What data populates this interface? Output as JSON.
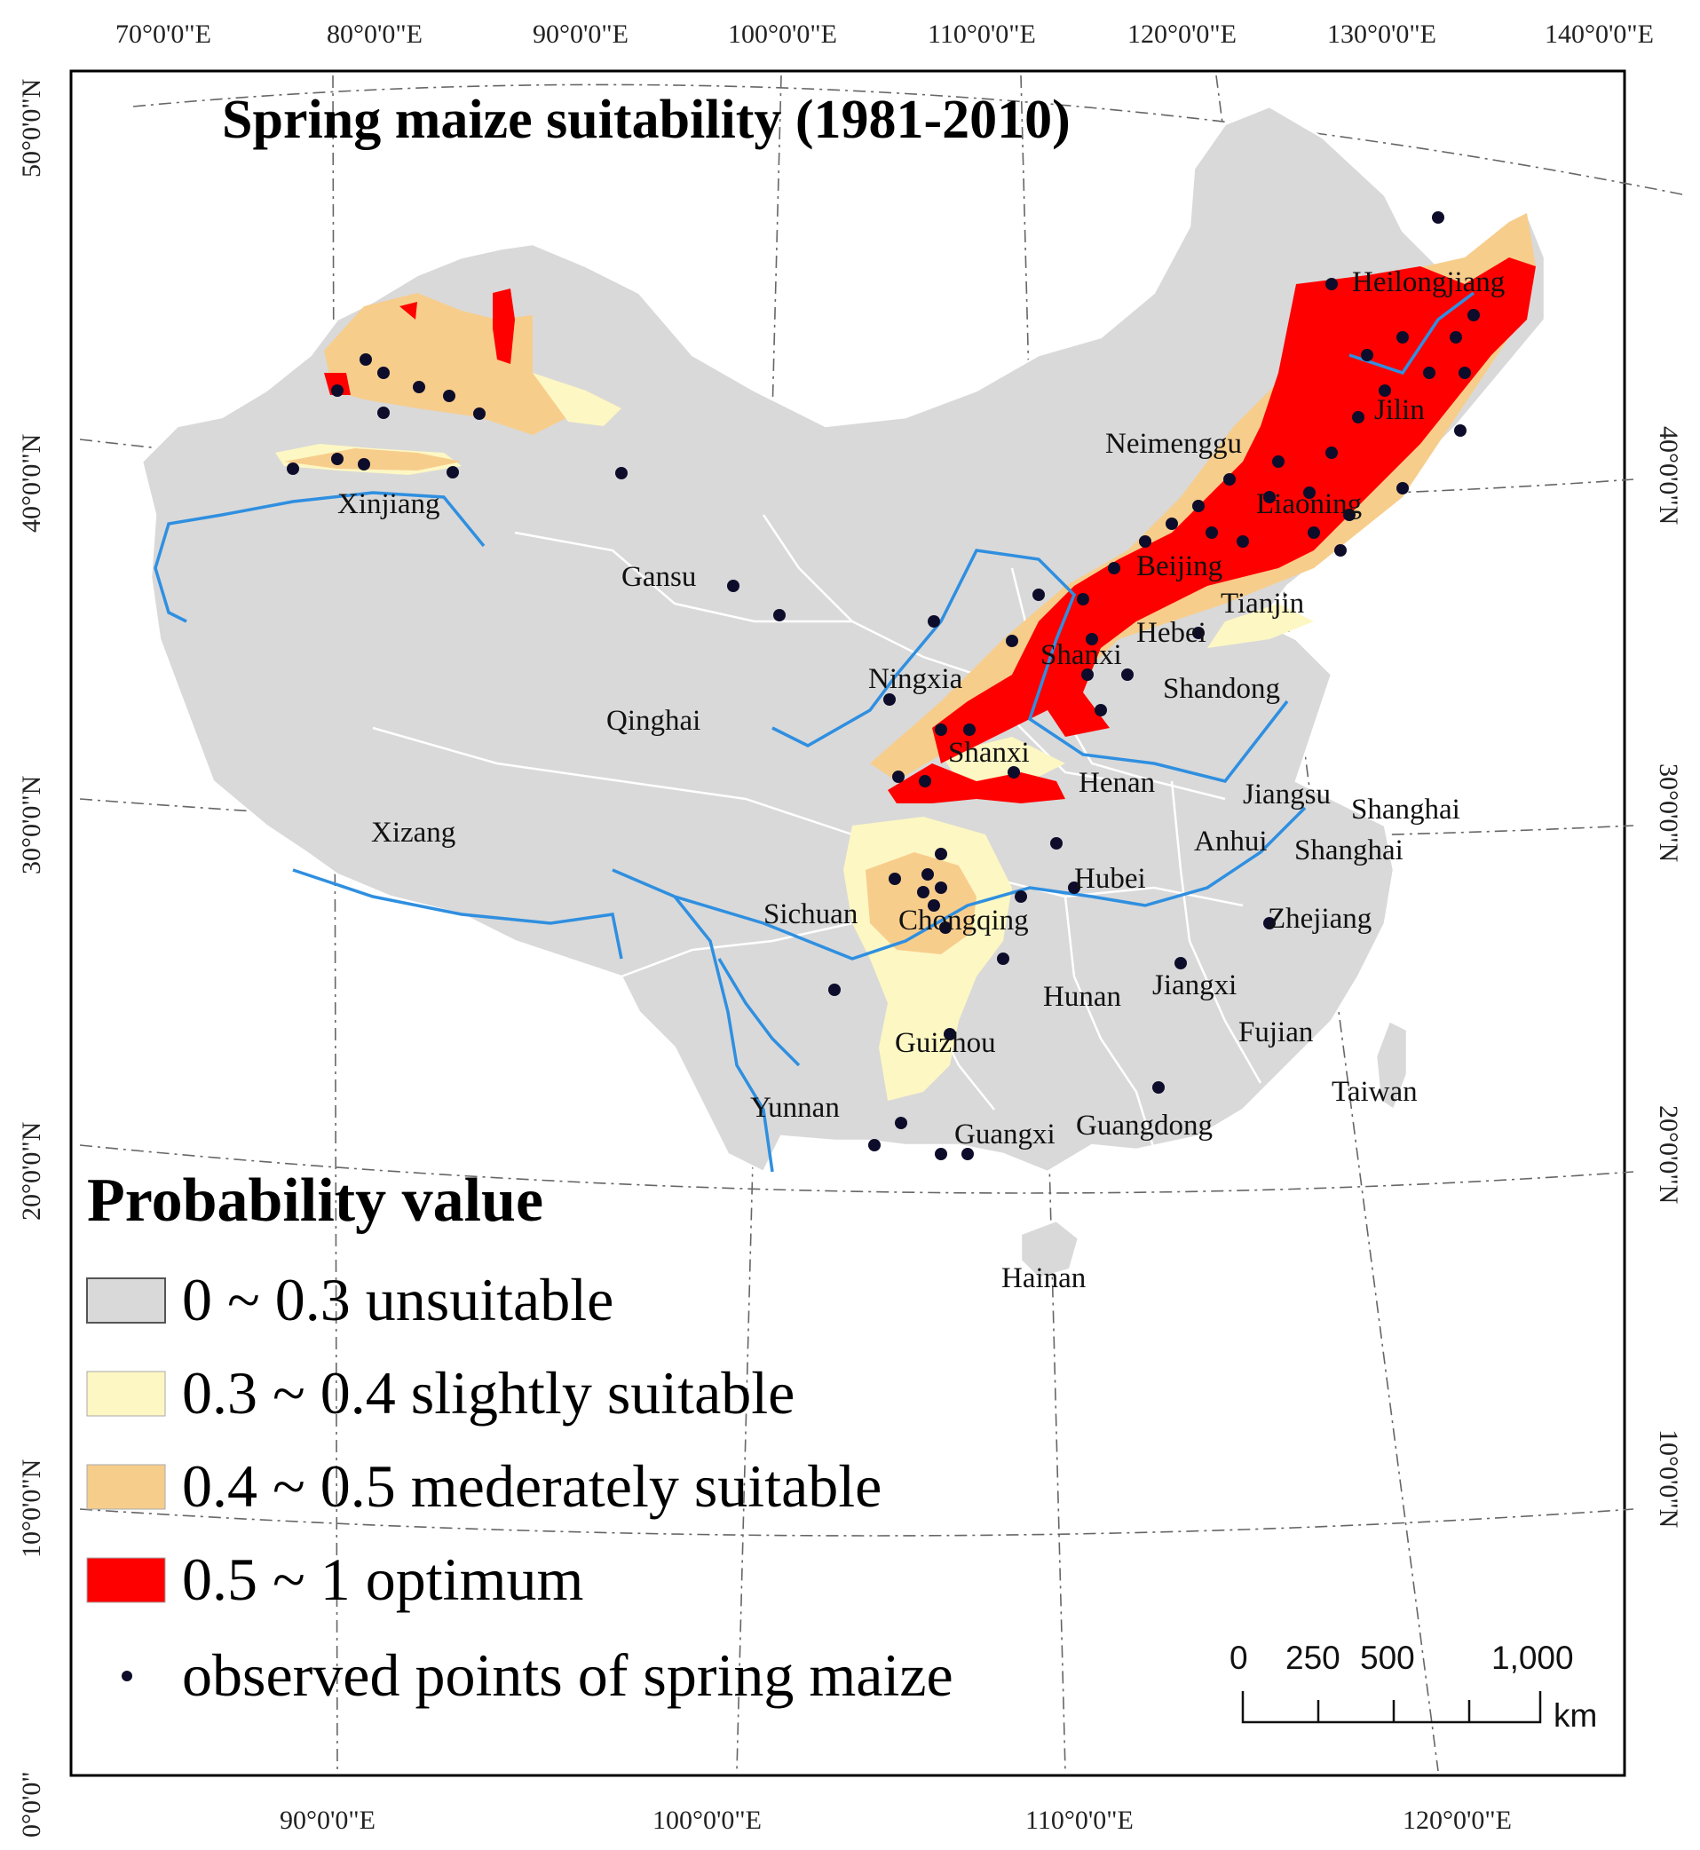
{
  "title": "Spring maize suitability (1981-2010)",
  "axes": {
    "top_ticks": [
      "70°0'0\"E",
      "80°0'0\"E",
      "90°0'0\"E",
      "100°0'0\"E",
      "110°0'0\"E",
      "120°0'0\"E",
      "130°0'0\"E",
      "140°0'0\"E"
    ],
    "bottom_ticks": [
      "90°0'0\"E",
      "100°0'0\"E",
      "110°0'0\"E",
      "120°0'0\"E"
    ],
    "left_ticks": [
      "50°0'0\"N",
      "40°0'0\"N",
      "30°0'0\"N",
      "20°0'0\"N",
      "10°0'0\"N",
      "0°0'0\""
    ],
    "right_ticks": [
      "40°0'0\"N",
      "30°0'0\"N",
      "20°0'0\"N",
      "10°0'0\"N"
    ]
  },
  "provinces": [
    "Heilongjiang",
    "Jilin",
    "Neimenggu",
    "Liaoning",
    "Beijing",
    "Tianjin",
    "Hebei",
    "Shanxi",
    "Shandong",
    "Ningxia",
    "Shanxi",
    "Henan",
    "Jiangsu",
    "Shanghai",
    "Anhui",
    "Shanghai",
    "Hubei",
    "Zhejiang",
    "Xinjiang",
    "Gansu",
    "Qinghai",
    "Xizang",
    "Sichuan",
    "Chongqing",
    "Hunan",
    "Jiangxi",
    "Fujian",
    "Guizhou",
    "Taiwan",
    "Yunnan",
    "Guangxi",
    "Guangdong",
    "Hainan"
  ],
  "legend": {
    "title": "Probability value",
    "items": [
      {
        "label": "0 ~ 0.3 unsuitable",
        "color": "#d9d9d9"
      },
      {
        "label": "0.3 ~ 0.4 slightly suitable",
        "color": "#fdf7c3"
      },
      {
        "label": "0.4 ~ 0.5 mederately suitable",
        "color": "#f7cd8c"
      },
      {
        "label": "0.5 ~ 1 optimum",
        "color": "#ff0000"
      }
    ],
    "points_label": "observed points of spring maize",
    "point_color": "#0d0d2b"
  },
  "scale_bar": {
    "labels": [
      "0",
      "250",
      "500",
      "1,000"
    ],
    "unit": "km"
  },
  "colors": {
    "unsuitable": "#d9d9d9",
    "slightly": "#fdf7c3",
    "moderately": "#f7cd8c",
    "optimum": "#ff0000",
    "river": "#2f8fe0",
    "border": "#ffffff"
  }
}
